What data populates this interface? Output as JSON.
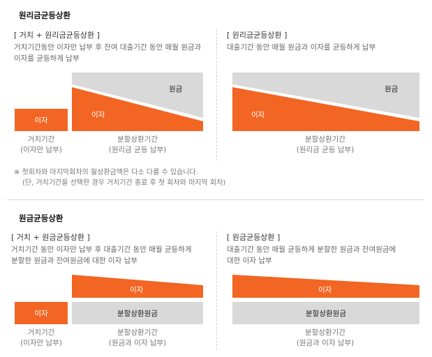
{
  "section1": {
    "title": "원리금균등상환",
    "left": {
      "heading": "[ 거치 + 원리금균등상환 ]",
      "desc_line1": "거치기간동안 이자만 납부 후 잔여 대출기간 동안 매월 원금과",
      "desc_line2": "이자를 균등하게 납부",
      "grace_box_label": "이자",
      "principal_label": "원금",
      "interest_label": "이자",
      "cap1_line1": "거치기간",
      "cap1_line2": "(이자만 납부)",
      "cap2_line1": "분할상환기간",
      "cap2_line2": "(원리금 균등 납부)"
    },
    "right": {
      "heading": "[ 원리금균등상환 ]",
      "desc_line1": "대출기간 동안 매월 원금과 이자를 균등하게 납부",
      "principal_label": "원금",
      "interest_label": "이자",
      "cap_line1": "분할상환기간",
      "cap_line2": "(원리금 균등 납부)"
    },
    "note_line1": "※ 첫회차와 마지막회차의 월상환금액은 다소 다를 수 있습니다.",
    "note_line2": "(단, 거치기간을 선택한 경우 거치기간 종료 후 첫 회차와 마지막 회차)"
  },
  "section2": {
    "title": "원금균등상환",
    "left": {
      "heading": "[ 거치 + 원금균등상환 ]",
      "desc_line1": "거치기간 동안 이자만 납부 후 대출기간 동안 매월 균등하게",
      "desc_line2": "분할한 원금과 잔여원금에 대한 이자 납부",
      "grace_box_label": "이자",
      "interest_label": "이자",
      "principal_label": "분할상환원금",
      "cap1_line1": "거치기간",
      "cap1_line2": "(이자만 납부)",
      "cap2_line1": "분할상환기간",
      "cap2_line2": "(원금과 이자 납부)"
    },
    "right": {
      "heading": "[ 원금균등상환 ]",
      "desc_line1": "대출기간 동안 매월 균등하게 분할한 원금과 잔여원금에",
      "desc_line2": "대한 이자 납부",
      "interest_label": "이자",
      "principal_label": "분할상환원금",
      "cap_line1": "분할상환기간",
      "cap_line2": "(원금과 이자 납부)"
    }
  },
  "colors": {
    "orange": "#f26522",
    "gray": "#d9d9d9"
  }
}
